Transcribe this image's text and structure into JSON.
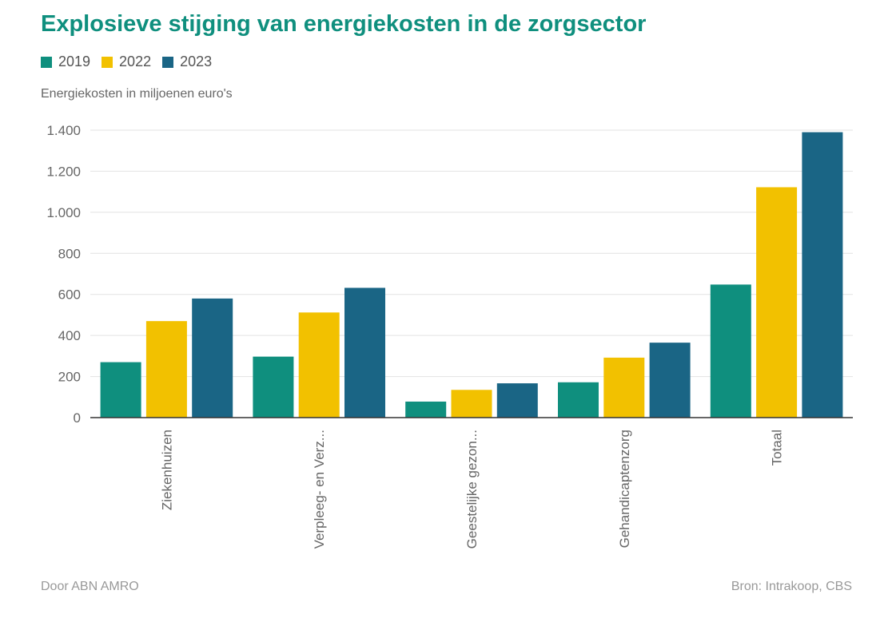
{
  "title": "Explosieve stijging van energiekosten in de zorgsector",
  "subtitle": "Energiekosten in miljoenen euro's",
  "footer": {
    "left": "Door ABN AMRO",
    "right": "Bron: Intrakoop, CBS"
  },
  "colors": {
    "title": "#0f8f7e",
    "grid": "#e2e2e2",
    "axis": "#333333",
    "tick_text": "#666666"
  },
  "chart_data": {
    "type": "bar",
    "title": "Explosieve stijging van energiekosten in de zorgsector",
    "ylabel": "Energiekosten in miljoenen euro's",
    "xlabel": "",
    "categories": [
      "Ziekenhuizen",
      "Verpleeg- en Verz...",
      "Geestelijke gezon...",
      "Gehandicaptenzorg",
      "Totaal"
    ],
    "series": [
      {
        "name": "2019",
        "color": "#0f8f7e",
        "values": [
          270,
          297,
          78,
          172,
          648
        ]
      },
      {
        "name": "2022",
        "color": "#f2c100",
        "values": [
          470,
          512,
          135,
          292,
          1122
        ]
      },
      {
        "name": "2023",
        "color": "#1a6585",
        "values": [
          580,
          632,
          167,
          365,
          1390
        ]
      }
    ],
    "ylim": [
      0,
      1400
    ],
    "yticks": [
      0,
      200,
      400,
      600,
      800,
      1000,
      1200,
      1400
    ],
    "ytick_labels": [
      "0",
      "200",
      "400",
      "600",
      "800",
      "1.000",
      "1.200",
      "1.400"
    ],
    "grid": true,
    "legend_position": "top-left"
  }
}
